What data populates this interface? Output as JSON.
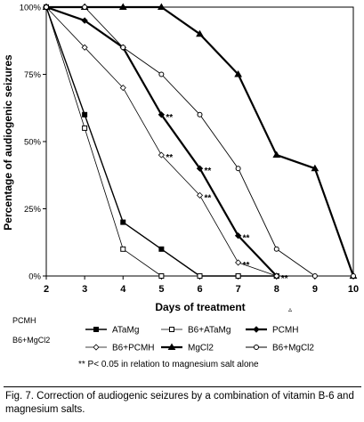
{
  "chart_data": {
    "type": "line",
    "xlabel": "Days of treatment",
    "ylabel": "Percentage of audiogenic seizures",
    "x": [
      2,
      3,
      4,
      5,
      6,
      7,
      8,
      9,
      10
    ],
    "x_ticks": [
      "2",
      "3",
      "4",
      "5",
      "6",
      "7",
      "8",
      "9",
      "10"
    ],
    "ylim": [
      0,
      100
    ],
    "y_ticks": [
      {
        "value": 0,
        "label": "0%"
      },
      {
        "value": 25,
        "label": "25%"
      },
      {
        "value": 50,
        "label": "50%"
      },
      {
        "value": 75,
        "label": "75%"
      },
      {
        "value": 100,
        "label": "100%"
      }
    ],
    "grid": false,
    "legend_position": "bottom",
    "series": [
      {
        "name": "ATaMg",
        "marker": "filled-square",
        "values": [
          100,
          60,
          20,
          10,
          0,
          0,
          0,
          null,
          null
        ]
      },
      {
        "name": "B6+ATaMg",
        "marker": "open-square",
        "values": [
          100,
          55,
          10,
          0,
          0,
          0,
          0,
          null,
          null
        ]
      },
      {
        "name": "PCMH",
        "marker": "filled-diamond",
        "values": [
          100,
          95,
          85,
          60,
          40,
          15,
          0,
          null,
          null
        ]
      },
      {
        "name": "B6+PCMH",
        "marker": "open-diamond",
        "values": [
          100,
          85,
          70,
          45,
          30,
          5,
          0,
          null,
          null
        ]
      },
      {
        "name": "MgCl2",
        "marker": "filled-triangle",
        "values": [
          100,
          100,
          100,
          100,
          90,
          75,
          45,
          40,
          0
        ]
      },
      {
        "name": "B6+MgCl2",
        "marker": "open-circle",
        "values": [
          100,
          100,
          85,
          75,
          60,
          40,
          10,
          0,
          0
        ]
      }
    ],
    "annotations": [
      {
        "text": "**",
        "x": 5,
        "y": 60
      },
      {
        "text": "**",
        "x": 5,
        "y": 45
      },
      {
        "text": "**",
        "x": 6,
        "y": 40
      },
      {
        "text": "**",
        "x": 6,
        "y": 30
      },
      {
        "text": "**",
        "x": 7,
        "y": 15
      },
      {
        "text": "**",
        "x": 7,
        "y": 5
      },
      {
        "text": "**",
        "x": 8,
        "y": 0
      }
    ],
    "footnote": "** P< 0.05 in relation to magnesium salt alone"
  },
  "side_notes": [
    "PCMH",
    "B6+MgCl2"
  ],
  "corner_glyph": "▵",
  "caption": "Fig. 7. Correction of audiogenic seizures by a combination of vitamin B-6 and magnesium salts.",
  "colors": {
    "ink": "#000000",
    "background": "#ffffff"
  }
}
